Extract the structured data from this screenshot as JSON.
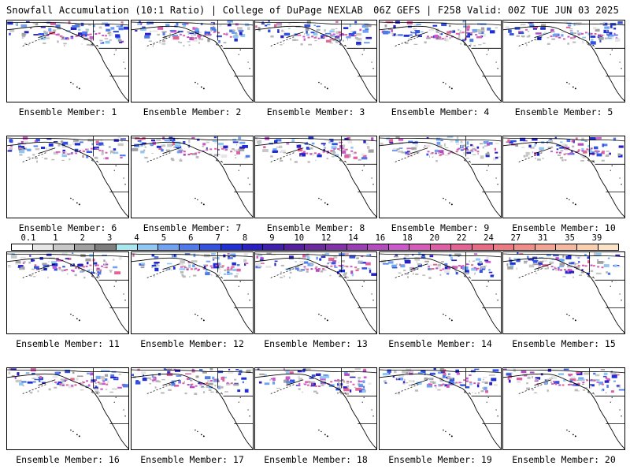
{
  "header": {
    "left": "Snowfall Accumulation (10:1 Ratio) | College of DuPage NEXLAB",
    "right": "06Z GEFS | F258 Valid: 00Z TUE JUN 03 2025"
  },
  "panels": [
    {
      "caption": "Ensemble Member: 1"
    },
    {
      "caption": "Ensemble Member: 2"
    },
    {
      "caption": "Ensemble Member: 3"
    },
    {
      "caption": "Ensemble Member: 4"
    },
    {
      "caption": "Ensemble Member: 5"
    },
    {
      "caption": "Ensemble Member: 6"
    },
    {
      "caption": "Ensemble Member: 7"
    },
    {
      "caption": "Ensemble Member: 8"
    },
    {
      "caption": "Ensemble Member: 9"
    },
    {
      "caption": "Ensemble Member: 10"
    },
    {
      "caption": "Ensemble Member: 11"
    },
    {
      "caption": "Ensemble Member: 12"
    },
    {
      "caption": "Ensemble Member: 13"
    },
    {
      "caption": "Ensemble Member: 14"
    },
    {
      "caption": "Ensemble Member: 15"
    },
    {
      "caption": "Ensemble Member: 16"
    },
    {
      "caption": "Ensemble Member: 17"
    },
    {
      "caption": "Ensemble Member: 18"
    },
    {
      "caption": "Ensemble Member: 19"
    },
    {
      "caption": "Ensemble Member: 20"
    }
  ],
  "colorbar": {
    "labels": [
      "0.1",
      "1",
      "2",
      "3",
      "4",
      "5",
      "6",
      "7",
      "8",
      "9",
      "10",
      "12",
      "14",
      "16",
      "18",
      "20",
      "22",
      "24",
      "27",
      "31",
      "35",
      "39"
    ],
    "colors": [
      "#ffffff",
      "#e6e6e6",
      "#c8c8c8",
      "#a0a0a0",
      "#7e7e7e",
      "#a9e7ef",
      "#8fc7f5",
      "#6fa2f2",
      "#4f7bea",
      "#3352e0",
      "#1f2fd6",
      "#2a1fc0",
      "#3f1fae",
      "#551fa0",
      "#6b2a9e",
      "#8233a8",
      "#9b3fb4",
      "#b44cc0",
      "#cc58cc",
      "#d75cba",
      "#de5fa6",
      "#e36492",
      "#e76b84",
      "#ec7a82",
      "#f08d88",
      "#f3a392",
      "#f6b99f",
      "#f9cfae",
      "#fbe2c4"
    ]
  }
}
